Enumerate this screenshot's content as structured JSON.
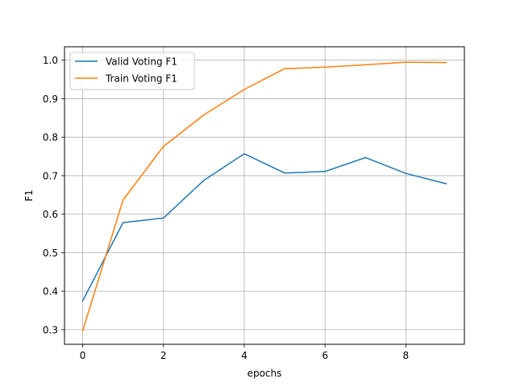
{
  "chart_data": {
    "type": "line",
    "title": "",
    "xlabel": "epochs",
    "ylabel": "F1",
    "x": [
      0,
      1,
      2,
      3,
      4,
      5,
      6,
      7,
      8,
      9
    ],
    "xlim": [
      -0.45,
      9.45
    ],
    "ylim": [
      0.262,
      1.035
    ],
    "xticks": [
      0,
      2,
      4,
      6,
      8
    ],
    "xtick_labels": [
      "0",
      "2",
      "4",
      "6",
      "8"
    ],
    "yticks": [
      0.3,
      0.4,
      0.5,
      0.6,
      0.7,
      0.8,
      0.9,
      1.0
    ],
    "ytick_labels": [
      "0.3",
      "0.4",
      "0.5",
      "0.6",
      "0.7",
      "0.8",
      "0.9",
      "1.0"
    ],
    "grid": true,
    "legend_position": "top-left",
    "series": [
      {
        "name": "Valid Voting F1",
        "color": "#1f77b4",
        "values": [
          0.375,
          0.578,
          0.59,
          0.688,
          0.757,
          0.707,
          0.711,
          0.747,
          0.706,
          0.679
        ]
      },
      {
        "name": "Train Voting F1",
        "color": "#ff7f0e",
        "values": [
          0.297,
          0.637,
          0.776,
          0.858,
          0.924,
          0.978,
          0.982,
          0.988,
          0.995,
          0.994
        ]
      }
    ]
  }
}
